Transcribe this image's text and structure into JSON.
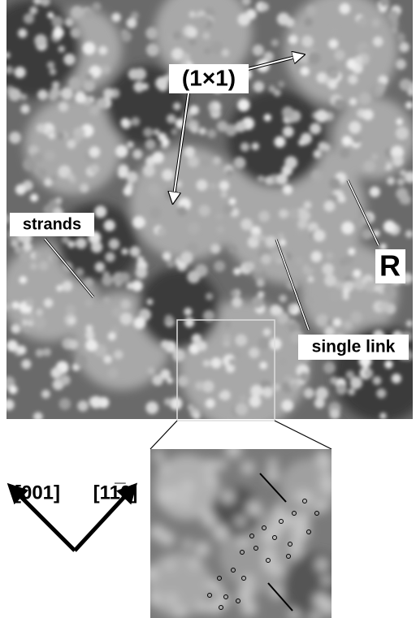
{
  "main_image": {
    "labels": {
      "phase": "(1×1)",
      "strands": "strands",
      "rotated": "R",
      "single_link": "single link"
    }
  },
  "directions": {
    "left": "[001]",
    "right": "[11̅0]"
  }
}
